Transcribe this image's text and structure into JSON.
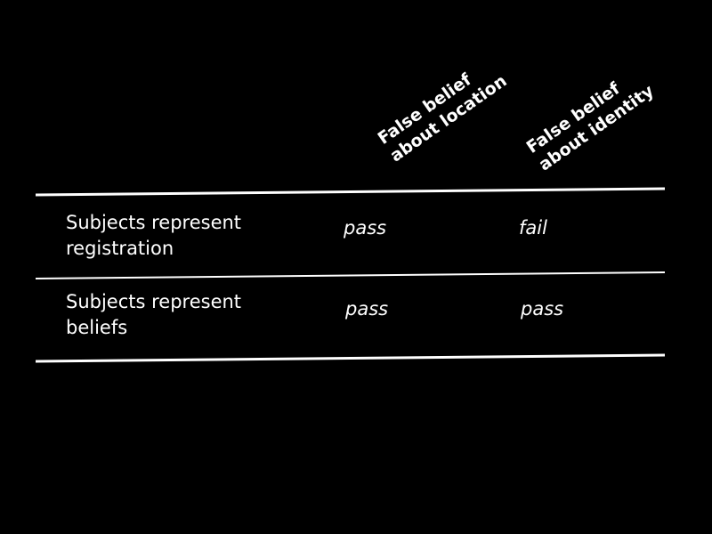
{
  "table": {
    "columns": [
      {
        "line1": "False belief",
        "line2": "about location"
      },
      {
        "line1": "False belief",
        "line2": "about identity"
      }
    ],
    "rows": [
      {
        "label_line1": "Subjects represent",
        "label_line2": "registration",
        "cells": [
          "pass",
          "fail"
        ]
      },
      {
        "label_line1": "Subjects represent",
        "label_line2": "beliefs",
        "cells": [
          "pass",
          "pass"
        ]
      }
    ]
  },
  "colors": {
    "background": "#000000",
    "foreground": "#ffffff"
  }
}
